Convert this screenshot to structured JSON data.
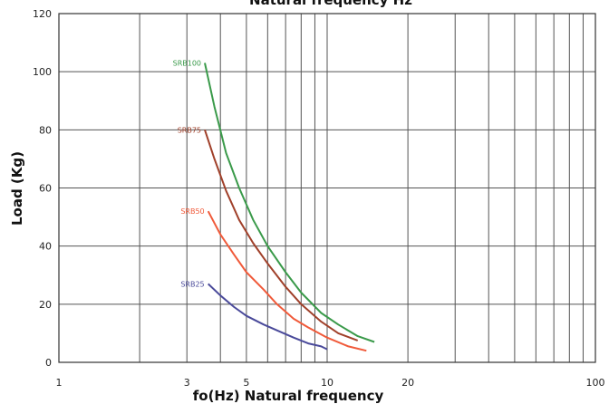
{
  "chart_data": {
    "type": "line",
    "title": "Natural frequency Hz",
    "xlabel": "fo(Hz) Natural frequency",
    "ylabel": "Load (Kg)",
    "xscale": "log",
    "xlim": [
      1,
      100
    ],
    "ylim": [
      0,
      120
    ],
    "grid": true,
    "x_ticks": [
      "1",
      "3",
      "5",
      "10",
      "20",
      "100"
    ],
    "x_tick_values": [
      1,
      3,
      5,
      10,
      20,
      100
    ],
    "y_ticks": [
      "0",
      "20",
      "40",
      "60",
      "80",
      "100",
      "120"
    ],
    "y_tick_values": [
      0,
      20,
      40,
      60,
      80,
      100,
      120
    ],
    "series": [
      {
        "name": "SRB100",
        "color": "#3a9a4a",
        "points": [
          [
            3.5,
            103
          ],
          [
            3.8,
            88
          ],
          [
            4.2,
            72
          ],
          [
            4.7,
            60
          ],
          [
            5.3,
            49
          ],
          [
            6.0,
            40
          ],
          [
            7.0,
            31
          ],
          [
            8.0,
            24
          ],
          [
            9.5,
            17
          ],
          [
            11.0,
            13
          ],
          [
            13.0,
            9
          ],
          [
            15.0,
            7
          ]
        ]
      },
      {
        "name": "SRB75",
        "color": "#a0402a",
        "points": [
          [
            3.5,
            80
          ],
          [
            3.8,
            70
          ],
          [
            4.2,
            59
          ],
          [
            4.7,
            49
          ],
          [
            5.3,
            41
          ],
          [
            6.0,
            34
          ],
          [
            7.0,
            26
          ],
          [
            8.0,
            20
          ],
          [
            9.5,
            14
          ],
          [
            11.0,
            10
          ],
          [
            13.0,
            7.5
          ]
        ]
      },
      {
        "name": "SRB50",
        "color": "#f05a3a",
        "points": [
          [
            3.6,
            52
          ],
          [
            4.0,
            44
          ],
          [
            4.5,
            37
          ],
          [
            5.0,
            31
          ],
          [
            5.8,
            25
          ],
          [
            6.5,
            20
          ],
          [
            7.5,
            15
          ],
          [
            8.5,
            12
          ],
          [
            10.0,
            8.5
          ],
          [
            12.0,
            5.5
          ],
          [
            14.0,
            4
          ]
        ]
      },
      {
        "name": "SRB25",
        "color": "#4a4a9a",
        "points": [
          [
            3.6,
            27
          ],
          [
            4.0,
            23
          ],
          [
            4.5,
            19
          ],
          [
            5.0,
            16
          ],
          [
            5.8,
            13
          ],
          [
            6.5,
            11
          ],
          [
            7.5,
            8.5
          ],
          [
            8.5,
            6.5
          ],
          [
            9.5,
            5.5
          ],
          [
            10.0,
            4.5
          ]
        ]
      }
    ]
  }
}
